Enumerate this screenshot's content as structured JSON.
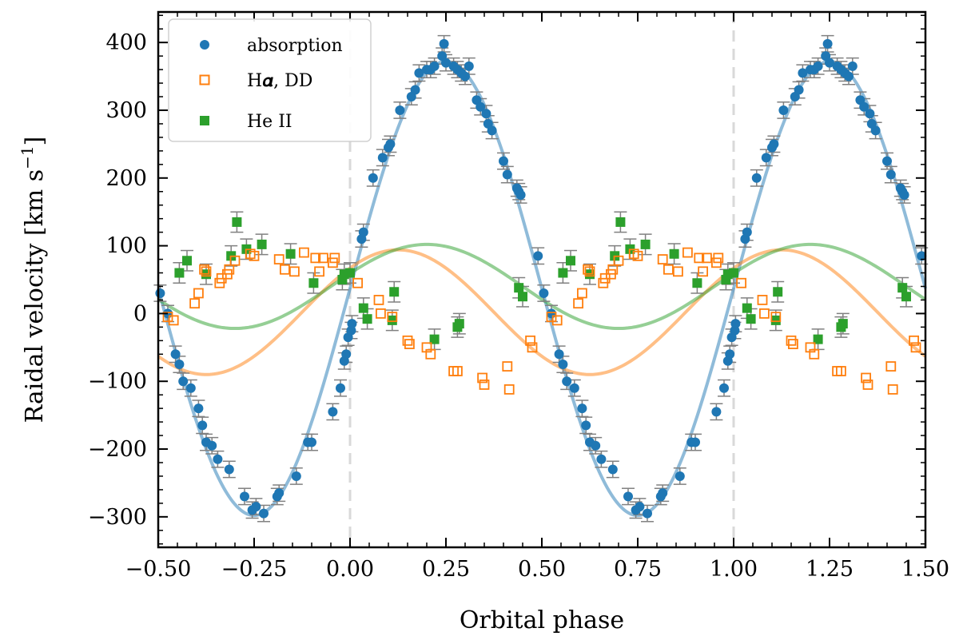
{
  "chart_data": {
    "type": "scatter",
    "xlabel": "Orbital phase",
    "ylabel": "Raidal velocity [km s",
    "ylabel_sup": "−1",
    "ylabel_close": "]",
    "xlim": [
      -0.5,
      1.5
    ],
    "ylim": [
      -345,
      445
    ],
    "xticks": [
      -0.5,
      -0.25,
      0.0,
      0.25,
      0.5,
      0.75,
      1.0,
      1.25,
      1.5
    ],
    "xtick_labels": [
      "−0.50",
      "−0.25",
      "0.00",
      "0.25",
      "0.50",
      "0.75",
      "1.00",
      "1.25",
      "1.50"
    ],
    "yticks": [
      -300,
      -200,
      -100,
      0,
      100,
      200,
      300,
      400
    ],
    "ytick_labels": [
      "−300",
      "−200",
      "−100",
      "0",
      "100",
      "200",
      "300",
      "400"
    ],
    "vlines": [
      0.0,
      1.0
    ],
    "legend_position": "top-left",
    "colors": {
      "absorption": "#1f77b4",
      "halpha": "#ff7f0e",
      "heii": "#2ca02c",
      "errorbar": "#808080",
      "vline": "#d9d9d9"
    },
    "series": [
      {
        "name": "absorption",
        "marker": "circle-filled",
        "model": {
          "gamma": 37,
          "K": 335
        },
        "errorbar": 12,
        "x": [
          0.003,
          0.005,
          0.03,
          0.035,
          0.06,
          0.085,
          0.1,
          0.105,
          0.13,
          0.16,
          0.17,
          0.18,
          0.2,
          0.21,
          0.22,
          0.24,
          0.245,
          0.25,
          0.27,
          0.28,
          0.29,
          0.3,
          0.31,
          0.33,
          0.34,
          0.355,
          0.36,
          0.37,
          0.4,
          0.41,
          0.435,
          0.44,
          0.445,
          0.49,
          0.505,
          0.525,
          0.545,
          0.555,
          0.565,
          0.585,
          0.605,
          0.615,
          0.625,
          0.64,
          0.655,
          0.685,
          0.725,
          0.745,
          0.755,
          0.775,
          0.81,
          0.815,
          0.86,
          0.89,
          0.9,
          0.955,
          0.975,
          0.985,
          0.99,
          0.995
        ],
        "y": [
          -25,
          -15,
          110,
          120,
          200,
          230,
          245,
          250,
          300,
          320,
          330,
          355,
          360,
          360,
          365,
          380,
          398,
          370,
          365,
          360,
          355,
          350,
          365,
          315,
          305,
          295,
          280,
          270,
          225,
          205,
          185,
          180,
          175,
          85,
          30,
          0,
          -60,
          -75,
          -100,
          -110,
          -140,
          -165,
          -190,
          -195,
          -215,
          -230,
          -270,
          -290,
          -285,
          -295,
          -270,
          -265,
          -240,
          -190,
          -190,
          -145,
          -110,
          -70,
          -60,
          -35
        ]
      },
      {
        "name": "Hα, DD",
        "marker": "square-open",
        "model": {
          "gamma": 2,
          "K": 92,
          "phi0": -0.125
        },
        "x": [
          0.02,
          0.075,
          0.08,
          0.11,
          0.15,
          0.155,
          0.2,
          0.21,
          0.27,
          0.28,
          0.345,
          0.35,
          0.41,
          0.415,
          0.47,
          0.475,
          0.525,
          0.54,
          0.595,
          0.605,
          0.62,
          0.625,
          0.66,
          0.665,
          0.68,
          0.685,
          0.7,
          0.74,
          0.75,
          0.815,
          0.83,
          0.855,
          0.88,
          0.91,
          0.92,
          0.93,
          0.955,
          0.96
        ],
        "y": [
          45,
          20,
          0,
          -5,
          -40,
          -45,
          -50,
          -60,
          -85,
          -85,
          -95,
          -105,
          -78,
          -112,
          -40,
          -50,
          -5,
          -10,
          15,
          30,
          65,
          62,
          45,
          52,
          58,
          65,
          78,
          88,
          85,
          80,
          65,
          62,
          90,
          82,
          62,
          82,
          75,
          82
        ]
      },
      {
        "name": "He II",
        "marker": "square-filled",
        "model": {
          "gamma": 40,
          "K": 62,
          "phi0": -0.05
        },
        "errorbar": 15,
        "x": [
          0.0,
          0.035,
          0.045,
          0.11,
          0.115,
          0.22,
          0.28,
          0.285,
          0.44,
          0.45,
          0.555,
          0.575,
          0.625,
          0.69,
          0.705,
          0.73,
          0.77,
          0.845,
          0.905,
          0.98,
          0.985
        ],
        "y": [
          60,
          8,
          -8,
          -10,
          32,
          -38,
          -20,
          -15,
          38,
          25,
          60,
          78,
          58,
          85,
          135,
          95,
          102,
          88,
          45,
          50,
          58
        ]
      }
    ]
  },
  "legend": {
    "items": [
      "absorption",
      "H𝜶, DD",
      "He II"
    ]
  }
}
